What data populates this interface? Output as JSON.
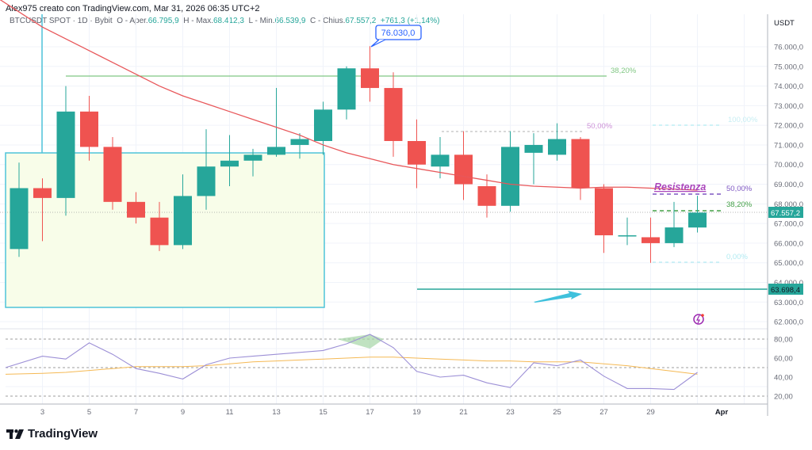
{
  "header": {
    "author_line": "Alex975 creato con TradingView.com, Mar 31, 2026 06:35 UTC+2",
    "symbol": "BTCUSDT SPOT",
    "interval": "1D",
    "exchange": "Bybit",
    "open_label": "O - Aper.",
    "open_value": "66.795,9",
    "high_label": "H - Max.",
    "high_value": "68.412,3",
    "low_label": "L - Min.",
    "low_value": "66.539,9",
    "close_label": "C - Chius.",
    "close_value": "67.557,2",
    "change": "+761,3 (+1,14%)"
  },
  "price_axis": {
    "currency": "USDT",
    "ticks": [
      "76.000,0",
      "75.000,0",
      "74.000,0",
      "73.000,0",
      "72.000,0",
      "71.000,0",
      "70.000,0",
      "69.000,0",
      "68.000,0",
      "67.000,0",
      "66.000,0",
      "65.000,0",
      "64.000,0",
      "63.000,0",
      "62.000,0"
    ],
    "last_price_label": "67.557,2",
    "level_label": "63.698,4"
  },
  "rsi_axis": {
    "ticks": [
      "80,00",
      "60,00",
      "40,00",
      "20,00"
    ]
  },
  "time_axis": {
    "ticks": [
      "3",
      "5",
      "7",
      "9",
      "11",
      "13",
      "15",
      "17",
      "19",
      "21",
      "23",
      "25",
      "27",
      "29",
      "Apr"
    ]
  },
  "annotations": {
    "high_callout": "76.030,0",
    "resistance_label": "Resistenza",
    "fib_upper_38": "38,20%",
    "fib_upper_50": "50,00%",
    "fib_right_100": "100,00%",
    "fib_right_50": "50,00%",
    "fib_right_38": "38,20%",
    "fib_right_0": "0,00%"
  },
  "branding": {
    "logo_text": "TradingView"
  },
  "colors": {
    "up": "#26a69a",
    "down": "#ef5350",
    "ma": "#e8575a",
    "box": "#4fc3d9",
    "rsi": "#9c8fd6",
    "rsi_ma": "#f5b954",
    "accent": "#2962ff"
  },
  "chart_data": {
    "type": "candlestick",
    "title": "BTCUSDT SPOT · 1D · Bybit",
    "xlabel": "",
    "ylabel": "USDT",
    "ylim": [
      61500,
      76800
    ],
    "x": [
      "Mar 2",
      "Mar 3",
      "Mar 4",
      "Mar 5",
      "Mar 6",
      "Mar 7",
      "Mar 8",
      "Mar 9",
      "Mar 10",
      "Mar 11",
      "Mar 12",
      "Mar 13",
      "Mar 14",
      "Mar 15",
      "Mar 16",
      "Mar 17",
      "Mar 18",
      "Mar 19",
      "Mar 20",
      "Mar 21",
      "Mar 22",
      "Mar 23",
      "Mar 24",
      "Mar 25",
      "Mar 26",
      "Mar 27",
      "Mar 28",
      "Mar 29",
      "Mar 30",
      "Mar 31"
    ],
    "ohlc": [
      [
        65700,
        70100,
        65300,
        68800
      ],
      [
        68800,
        69300,
        66100,
        68300
      ],
      [
        68300,
        74000,
        67400,
        72700
      ],
      [
        72700,
        73500,
        70200,
        70900
      ],
      [
        70900,
        71400,
        67700,
        68100
      ],
      [
        68100,
        68600,
        67000,
        67300
      ],
      [
        67300,
        68100,
        65600,
        65900
      ],
      [
        65900,
        69500,
        65700,
        68400
      ],
      [
        68400,
        71800,
        67700,
        69900
      ],
      [
        69900,
        71500,
        68900,
        70200
      ],
      [
        70200,
        70800,
        69400,
        70500
      ],
      [
        70500,
        73900,
        70400,
        70900
      ],
      [
        71000,
        71600,
        70300,
        71300
      ],
      [
        71200,
        73200,
        70500,
        72800
      ],
      [
        72800,
        75000,
        72300,
        74900
      ],
      [
        74900,
        76030,
        73200,
        73900
      ],
      [
        73900,
        74700,
        70400,
        71200
      ],
      [
        71200,
        72300,
        68800,
        70000
      ],
      [
        69900,
        71400,
        69300,
        70500
      ],
      [
        70500,
        71700,
        68200,
        69000
      ],
      [
        68900,
        69500,
        67300,
        67900
      ],
      [
        67900,
        71700,
        67600,
        70900
      ],
      [
        70600,
        71600,
        69000,
        71000
      ],
      [
        70500,
        72100,
        70200,
        71300
      ],
      [
        71300,
        71400,
        68200,
        68800
      ],
      [
        68800,
        69000,
        65500,
        66400
      ],
      [
        66400,
        67300,
        65900,
        66400
      ],
      [
        66300,
        67300,
        65000,
        66000
      ],
      [
        66000,
        68100,
        65800,
        66800
      ],
      [
        66796,
        68412,
        66540,
        67557
      ]
    ],
    "series": [
      {
        "name": "MA",
        "values": [
          78000,
          77000,
          76400,
          75800,
          75200,
          74600,
          74000,
          73500,
          73100,
          72700,
          72300,
          71900,
          71500,
          71000,
          70600,
          70300,
          70000,
          69800,
          69600,
          69400,
          69200,
          69000,
          68900,
          68850,
          68800,
          68850,
          68850,
          68800,
          68750,
          68700
        ]
      },
      {
        "name": "RSI",
        "values": [
          50,
          62,
          59,
          76,
          64,
          49,
          44,
          38,
          53,
          60,
          62,
          64,
          66,
          68,
          75,
          85,
          71,
          46,
          40,
          42,
          34,
          29,
          55,
          52,
          58,
          41,
          28,
          28,
          27,
          45
        ]
      },
      {
        "name": "RSI MA",
        "values": [
          43,
          44,
          45,
          47,
          49,
          51,
          51,
          51,
          52,
          54,
          56,
          57,
          58,
          59,
          60,
          61,
          61,
          60,
          59,
          58,
          57,
          57,
          56,
          56,
          56,
          54,
          52,
          49,
          46,
          43
        ]
      }
    ],
    "levels": {
      "support_box": {
        "from": "Mar 2",
        "to": "Mar 15",
        "top": 70550,
        "bottom": 62800
      },
      "horizontal_level": 63698.4,
      "fib_upper": {
        "38.2%": 74550,
        "50%": 71730
      },
      "fib_right": {
        "100%": 72050,
        "50%": 68550,
        "38.2%": 67700,
        "0%": 65050
      },
      "resistance": "Resistenza"
    },
    "rsi_levels": [
      80,
      50,
      20
    ],
    "grid": true
  }
}
